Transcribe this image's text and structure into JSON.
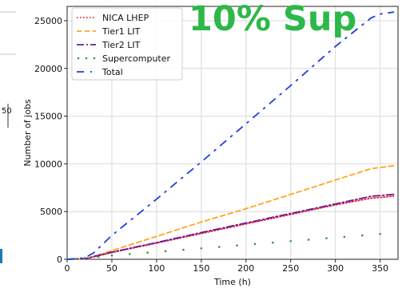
{
  "overlay": {
    "text": "10% Sup",
    "color": "#2db84a"
  },
  "left_stub": {
    "text": "50"
  },
  "chart_data": {
    "type": "line",
    "title": "",
    "xlabel": "Time (h)",
    "ylabel": "Number of jobs",
    "xlim": [
      0,
      370
    ],
    "ylim": [
      0,
      26500
    ],
    "x_ticks": [
      0,
      50,
      100,
      150,
      200,
      250,
      300,
      350
    ],
    "y_ticks": [
      0,
      5000,
      10000,
      15000,
      20000,
      25000
    ],
    "grid": true,
    "legend_position": "top-left",
    "series": [
      {
        "name": "NICA LHEP",
        "color": "#e8202c",
        "style": "dotted",
        "x": [
          0,
          20,
          30,
          50,
          100,
          150,
          200,
          250,
          300,
          340,
          365
        ],
        "y": [
          0,
          50,
          250,
          700,
          1700,
          2700,
          3700,
          4700,
          5700,
          6400,
          6600
        ]
      },
      {
        "name": "Tier1 LIT",
        "color": "#ffa420",
        "style": "dashed",
        "x": [
          0,
          20,
          30,
          50,
          100,
          150,
          200,
          250,
          300,
          340,
          365
        ],
        "y": [
          0,
          50,
          300,
          900,
          2400,
          3900,
          5300,
          6800,
          8300,
          9500,
          9800
        ]
      },
      {
        "name": "Tier2 LIT",
        "color": "#6a1b9a",
        "style": "dashdot",
        "x": [
          0,
          20,
          30,
          50,
          100,
          150,
          200,
          250,
          300,
          340,
          365
        ],
        "y": [
          0,
          50,
          300,
          750,
          1750,
          2800,
          3800,
          4800,
          5800,
          6600,
          6800
        ]
      },
      {
        "name": "Supercomputer",
        "color": "#2ca02c",
        "style": "sparse-dots",
        "x": [
          0,
          10,
          20,
          35,
          50,
          70,
          90,
          110,
          130,
          150,
          170,
          190,
          210,
          230,
          250,
          270,
          290,
          310,
          330,
          350
        ],
        "y": [
          0,
          50,
          150,
          250,
          400,
          550,
          700,
          850,
          1000,
          1150,
          1300,
          1450,
          1600,
          1750,
          1900,
          2050,
          2200,
          2350,
          2500,
          2650
        ]
      },
      {
        "name": "Total",
        "color": "#1f3fe0",
        "style": "dashdot-sparse",
        "x": [
          0,
          20,
          30,
          50,
          100,
          150,
          200,
          250,
          300,
          340,
          350,
          365
        ],
        "y": [
          0,
          150,
          700,
          2500,
          6300,
          10200,
          14200,
          18200,
          22300,
          25300,
          25700,
          25900
        ]
      }
    ]
  }
}
